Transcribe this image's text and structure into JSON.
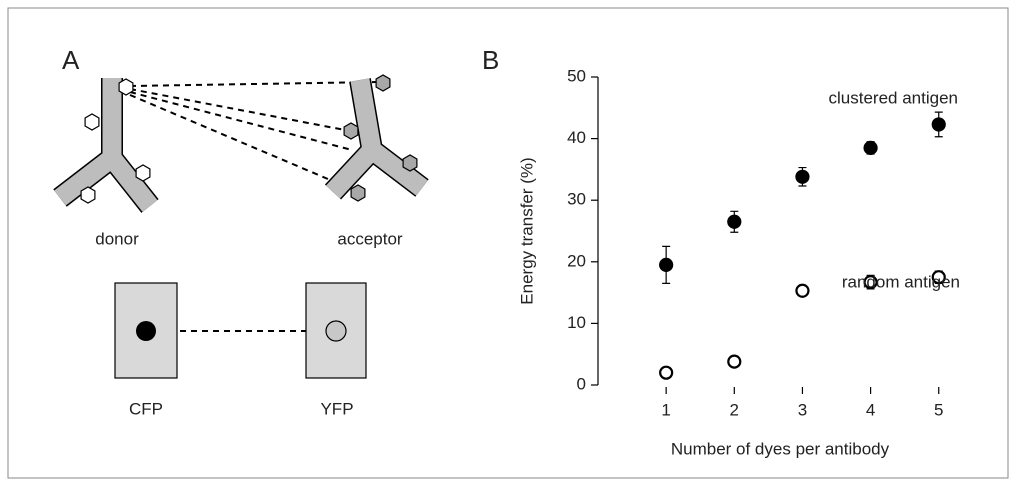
{
  "panel_a": {
    "label": "A",
    "donor": "donor",
    "acceptor": "acceptor",
    "left_box": "CFP",
    "right_box": "YFP"
  },
  "chart_data": {
    "type": "scatter",
    "panel_label": "B",
    "x_label": "Number of dyes per antibody",
    "y_label": "Energy transfer (%)",
    "x": [
      1,
      2,
      3,
      4,
      5
    ],
    "series": [
      {
        "name": "clustered antigen",
        "color": "#000000",
        "filled": true,
        "values": [
          19.5,
          26.5,
          33.8,
          38.5,
          42.3
        ],
        "errors": [
          3.0,
          1.7,
          1.5,
          1.0,
          2.0
        ]
      },
      {
        "name": "random antigen",
        "color": "#000000",
        "filled": false,
        "values": [
          2.0,
          3.8,
          15.3,
          16.7,
          17.5
        ],
        "errors": [
          0.3,
          0.8,
          0.3,
          1.1,
          1.0
        ]
      }
    ],
    "xlim": [
      0,
      5.4
    ],
    "ylim": [
      0,
      50
    ],
    "xticks": [
      1,
      2,
      3,
      4,
      5
    ],
    "yticks": [
      0,
      10,
      20,
      30,
      40,
      50
    ],
    "grid": false
  }
}
